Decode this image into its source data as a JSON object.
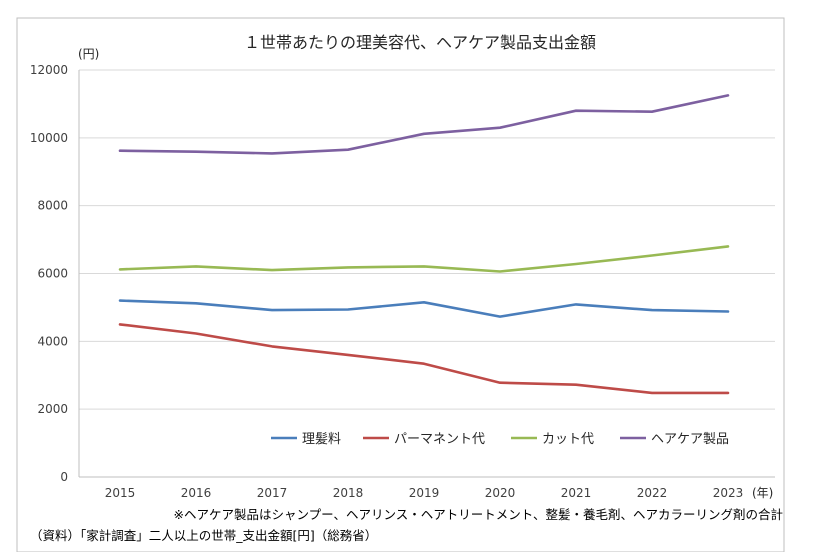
{
  "chart_data": {
    "type": "line",
    "title": "１世帯あたりの理美容代、ヘアケア製品支出金額",
    "ylabel": "(円)",
    "xlabel": "(年)",
    "ylim": [
      0,
      12000
    ],
    "yticks": [
      0,
      2000,
      4000,
      6000,
      8000,
      10000,
      12000
    ],
    "x": [
      "2015",
      "2016",
      "2017",
      "2018",
      "2019",
      "2020",
      "2021",
      "2022",
      "2023"
    ],
    "grid": true,
    "legend_position": "bottom-right",
    "series": [
      {
        "name": "理髪料",
        "color": "#4a7ebb",
        "values": [
          5200,
          5120,
          4920,
          4940,
          5150,
          4730,
          5090,
          4920,
          4880
        ]
      },
      {
        "name": "パーマネント代",
        "color": "#be4b48",
        "values": [
          4500,
          4230,
          3850,
          3600,
          3340,
          2780,
          2720,
          2480,
          2480
        ]
      },
      {
        "name": "カット代",
        "color": "#98b954",
        "values": [
          6120,
          6210,
          6100,
          6180,
          6210,
          6060,
          6280,
          6530,
          6800
        ]
      },
      {
        "name": "ヘアケア製品",
        "color": "#7d60a0",
        "values": [
          9620,
          9590,
          9540,
          9650,
          10120,
          10300,
          10800,
          10770,
          11250
        ]
      }
    ],
    "notes": [
      "※ヘアケア製品はシャンプー、ヘアリンス・ヘアトリートメント、整髪・養毛剤、ヘアカラーリング剤の合計",
      "（資料）「家計調査」二人以上の世帯_支出金額[円]（総務省）"
    ]
  }
}
